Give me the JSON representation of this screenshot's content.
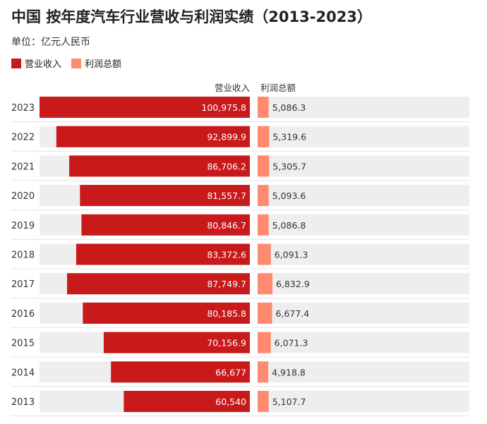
{
  "header": {
    "title": "中国 按年度汽车行业营收与利润实绩（2013-2023）",
    "unit": "单位：亿元人民币"
  },
  "legend": {
    "revenue_label": "营业收入",
    "profit_label": "利润总额"
  },
  "colors": {
    "revenue": "#C8191B",
    "profit": "#FF8A70",
    "track": "#EEEEEE"
  },
  "chart_data": {
    "type": "bar",
    "orientation": "horizontal",
    "categories": [
      "2023",
      "2022",
      "2021",
      "2020",
      "2019",
      "2018",
      "2017",
      "2016",
      "2015",
      "2014",
      "2013"
    ],
    "series": [
      {
        "name": "营业收入",
        "values": [
          100975.8,
          92899.9,
          86706.2,
          81557.7,
          80846.7,
          83372.6,
          87749.7,
          80185.8,
          70156.9,
          66677,
          60540
        ],
        "labels": [
          "100,975.8",
          "92,899.9",
          "86,706.2",
          "81,557.7",
          "80,846.7",
          "83,372.6",
          "87,749.7",
          "80,185.8",
          "70,156.9",
          "66,677",
          "60,540"
        ]
      },
      {
        "name": "利润总额",
        "values": [
          5086.3,
          5319.6,
          5305.7,
          5093.6,
          5086.8,
          6091.3,
          6832.9,
          6677.4,
          6071.3,
          4918.8,
          5107.7
        ],
        "labels": [
          "5,086.3",
          "5,319.6",
          "5,305.7",
          "5,093.6",
          "5,086.8",
          "6,091.3",
          "6,832.9",
          "6,677.4",
          "6,071.3",
          "4,918.8",
          "5,107.7"
        ]
      }
    ],
    "column_headers": [
      "营业收入",
      "利润总额"
    ]
  }
}
